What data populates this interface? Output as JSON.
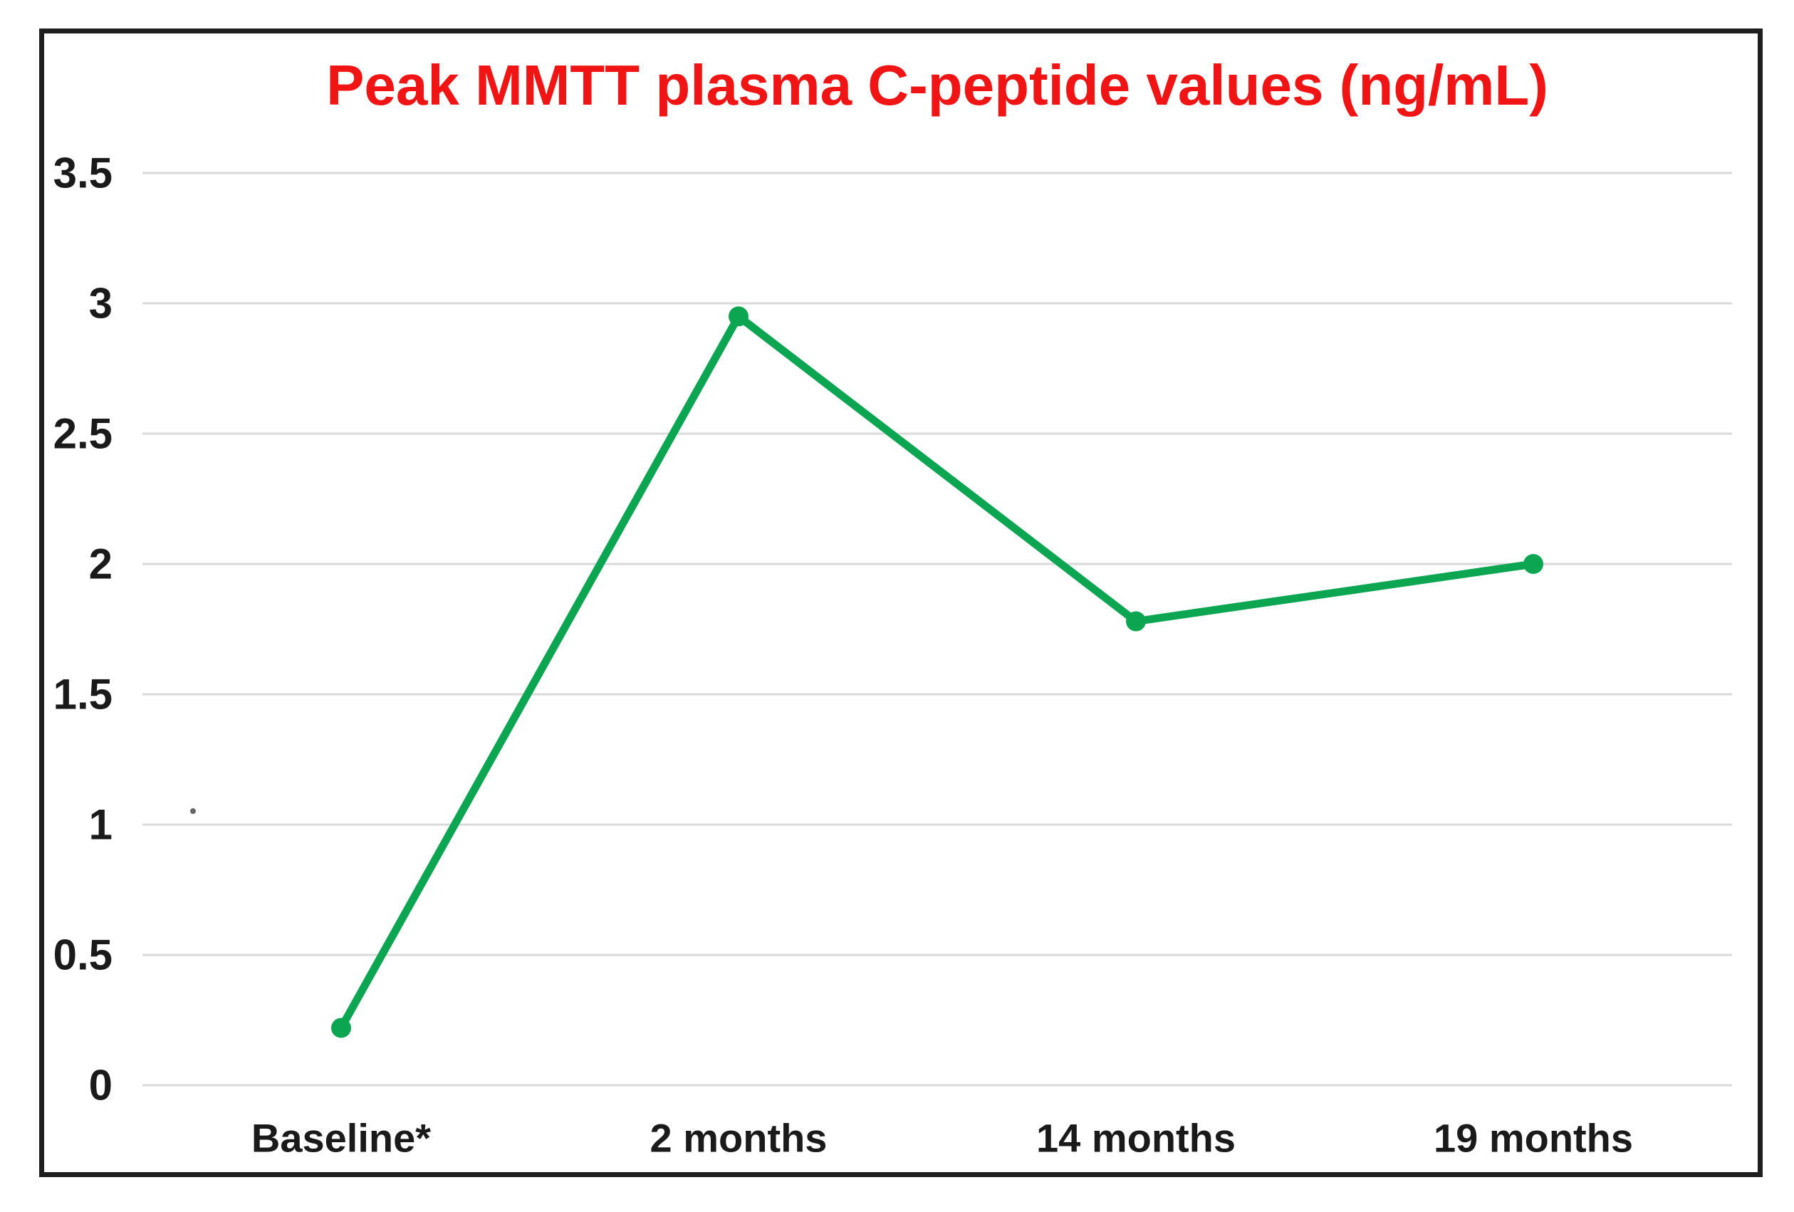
{
  "chart_data": {
    "type": "line",
    "title": "Peak MMTT plasma C-peptide values (ng/mL)",
    "xlabel": "",
    "ylabel": "",
    "categories": [
      "Baseline*",
      "2 months",
      "14 months",
      "19 months"
    ],
    "series": [
      {
        "name": "Peak MMTT plasma C-peptide",
        "values": [
          0.22,
          2.95,
          1.78,
          2.0
        ],
        "color": "#0ca551",
        "marker": "circle"
      }
    ],
    "ylim": [
      0,
      3.5
    ],
    "ytick_step": 0.5,
    "ytick_labels": [
      "0",
      "0.5",
      "1",
      "1.5",
      "2",
      "2.5",
      "3",
      "3.5"
    ],
    "grid": true,
    "legend_position": "none",
    "colors": {
      "title": "#f01414",
      "gridline": "#d9d9d9",
      "axis_text": "#1a1a1a",
      "figure_border": "#1f1f1f",
      "background": "#ffffff"
    }
  }
}
